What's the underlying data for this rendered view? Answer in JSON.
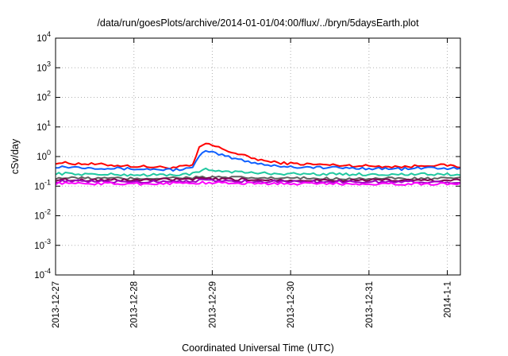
{
  "chart_data": {
    "type": "line",
    "title": "/data/run/goesPlots/archive/2014-01-01/04:00/flux/../bryn/5daysEarth.plot",
    "xlabel": "Coordinated Universal Time (UTC)",
    "ylabel": "cSv/day",
    "yscale": "log",
    "ylim": [
      0.0001,
      10000
    ],
    "grid": true,
    "y_ticks": [
      {
        "value": 0.0001,
        "base": "10",
        "exp": "-4"
      },
      {
        "value": 0.001,
        "base": "10",
        "exp": "-3"
      },
      {
        "value": 0.01,
        "base": "10",
        "exp": "-2"
      },
      {
        "value": 0.1,
        "base": "10",
        "exp": "-1"
      },
      {
        "value": 1,
        "base": "10",
        "exp": "0"
      },
      {
        "value": 10,
        "base": "10",
        "exp": "1"
      },
      {
        "value": 100,
        "base": "10",
        "exp": "2"
      },
      {
        "value": 1000,
        "base": "10",
        "exp": "3"
      },
      {
        "value": 10000,
        "base": "10",
        "exp": "4"
      }
    ],
    "xlim": [
      "2013-12-27 00:00",
      "2014-01-01 04:00"
    ],
    "x_ticks": [
      {
        "value": "2013-12-27 00:00",
        "label": "2013-12-27"
      },
      {
        "value": "2013-12-28 00:00",
        "label": "2013-12-28"
      },
      {
        "value": "2013-12-29 00:00",
        "label": "2013-12-29"
      },
      {
        "value": "2013-12-30 00:00",
        "label": "2013-12-30"
      },
      {
        "value": "2013-12-31 00:00",
        "label": "2013-12-31"
      },
      {
        "value": "2014-01-01 00:00",
        "label": "2014-1-1"
      }
    ],
    "series": [
      {
        "color": "#ff0000",
        "points": [
          [
            "2013-12-27 00:00",
            0.62
          ],
          [
            "2013-12-27 12:00",
            0.55
          ],
          [
            "2013-12-28 00:00",
            0.47
          ],
          [
            "2013-12-28 12:00",
            0.42
          ],
          [
            "2013-12-28 18:00",
            0.5
          ],
          [
            "2013-12-28 20:00",
            1.9
          ],
          [
            "2013-12-28 22:00",
            2.8
          ],
          [
            "2013-12-29 02:00",
            2.0
          ],
          [
            "2013-12-29 06:00",
            1.4
          ],
          [
            "2013-12-29 12:00",
            0.9
          ],
          [
            "2013-12-29 18:00",
            0.65
          ],
          [
            "2013-12-30 00:00",
            0.58
          ],
          [
            "2013-12-30 12:00",
            0.52
          ],
          [
            "2013-12-31 00:00",
            0.48
          ],
          [
            "2013-12-31 12:00",
            0.45
          ],
          [
            "2013-12-31 18:00",
            0.52
          ],
          [
            "2014-01-01 00:00",
            0.5
          ],
          [
            "2014-01-01 04:00",
            0.45
          ]
        ]
      },
      {
        "color": "#1060ff",
        "points": [
          [
            "2013-12-27 00:00",
            0.46
          ],
          [
            "2013-12-27 12:00",
            0.42
          ],
          [
            "2013-12-28 00:00",
            0.38
          ],
          [
            "2013-12-28 12:00",
            0.36
          ],
          [
            "2013-12-28 18:00",
            0.4
          ],
          [
            "2013-12-28 20:00",
            1.1
          ],
          [
            "2013-12-28 22:00",
            1.5
          ],
          [
            "2013-12-29 02:00",
            1.2
          ],
          [
            "2013-12-29 06:00",
            0.9
          ],
          [
            "2013-12-29 12:00",
            0.65
          ],
          [
            "2013-12-29 18:00",
            0.5
          ],
          [
            "2013-12-30 00:00",
            0.45
          ],
          [
            "2013-12-30 12:00",
            0.42
          ],
          [
            "2013-12-31 00:00",
            0.4
          ],
          [
            "2013-12-31 12:00",
            0.38
          ],
          [
            "2013-12-31 18:00",
            0.42
          ],
          [
            "2014-01-01 00:00",
            0.4
          ],
          [
            "2014-01-01 04:00",
            0.38
          ]
        ]
      },
      {
        "color": "#20c8a0",
        "points": [
          [
            "2013-12-27 00:00",
            0.27
          ],
          [
            "2013-12-27 12:00",
            0.25
          ],
          [
            "2013-12-28 00:00",
            0.24
          ],
          [
            "2013-12-28 12:00",
            0.24
          ],
          [
            "2013-12-28 18:00",
            0.26
          ],
          [
            "2013-12-28 22:00",
            0.36
          ],
          [
            "2013-12-29 04:00",
            0.32
          ],
          [
            "2013-12-29 12:00",
            0.28
          ],
          [
            "2013-12-30 00:00",
            0.26
          ],
          [
            "2013-12-31 00:00",
            0.25
          ],
          [
            "2014-01-01 00:00",
            0.25
          ],
          [
            "2014-01-01 04:00",
            0.24
          ]
        ]
      },
      {
        "color": "#606060",
        "points": [
          [
            "2013-12-27 00:00",
            0.19
          ],
          [
            "2013-12-28 00:00",
            0.18
          ],
          [
            "2013-12-28 22:00",
            0.2
          ],
          [
            "2013-12-29 12:00",
            0.19
          ],
          [
            "2013-12-30 00:00",
            0.185
          ],
          [
            "2013-12-31 00:00",
            0.18
          ],
          [
            "2014-01-01 04:00",
            0.18
          ]
        ]
      },
      {
        "color": "#800050",
        "points": [
          [
            "2013-12-27 00:00",
            0.165
          ],
          [
            "2013-12-28 00:00",
            0.16
          ],
          [
            "2013-12-28 22:00",
            0.175
          ],
          [
            "2013-12-29 12:00",
            0.165
          ],
          [
            "2013-12-30 00:00",
            0.16
          ],
          [
            "2013-12-31 00:00",
            0.158
          ],
          [
            "2014-01-01 04:00",
            0.155
          ]
        ]
      },
      {
        "color": "#a000c0",
        "points": [
          [
            "2013-12-27 00:00",
            0.145
          ],
          [
            "2013-12-28 00:00",
            0.14
          ],
          [
            "2013-12-28 22:00",
            0.155
          ],
          [
            "2013-12-29 12:00",
            0.145
          ],
          [
            "2013-12-30 00:00",
            0.142
          ],
          [
            "2013-12-31 00:00",
            0.14
          ],
          [
            "2014-01-01 04:00",
            0.138
          ]
        ]
      },
      {
        "color": "#ff00ff",
        "points": [
          [
            "2013-12-27 00:00",
            0.125
          ],
          [
            "2013-12-28 00:00",
            0.12
          ],
          [
            "2013-12-28 22:00",
            0.13
          ],
          [
            "2013-12-29 12:00",
            0.125
          ],
          [
            "2013-12-30 00:00",
            0.122
          ],
          [
            "2013-12-31 00:00",
            0.12
          ],
          [
            "2014-01-01 04:00",
            0.118
          ]
        ]
      }
    ]
  }
}
